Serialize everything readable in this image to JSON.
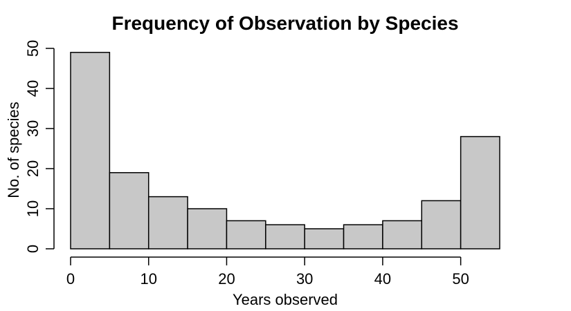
{
  "chart_data": {
    "type": "bar",
    "title": "Frequency of Observation by Species",
    "xlabel": "Years observed",
    "ylabel": "No. of species",
    "bin_edges": [
      0,
      5,
      10,
      15,
      20,
      25,
      30,
      35,
      40,
      45,
      50,
      55
    ],
    "values": [
      49,
      19,
      13,
      10,
      7,
      6,
      5,
      6,
      7,
      12,
      28
    ],
    "xlim": [
      0,
      55
    ],
    "ylim": [
      0,
      50
    ],
    "x_ticks": [
      "0",
      "10",
      "20",
      "30",
      "40",
      "50"
    ],
    "y_ticks": [
      "0",
      "10",
      "20",
      "30",
      "40",
      "50"
    ],
    "grid": false,
    "bar_color": "#c8c8c8",
    "edge_color": "#000000"
  }
}
